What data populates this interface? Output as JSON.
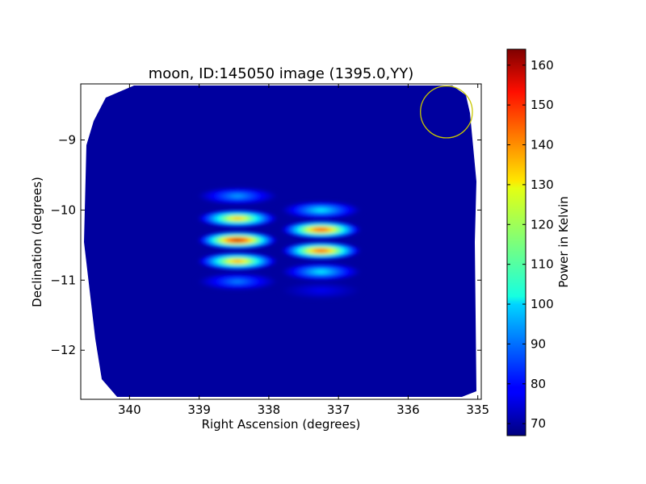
{
  "chart_data": {
    "type": "heatmap",
    "title": "moon, ID:145050 image (1395.0,YY)",
    "xlabel": "Right Ascension (degrees)",
    "ylabel": "Declination (degrees)",
    "xlim": [
      340.7,
      334.95
    ],
    "ylim": [
      -12.7,
      -8.2
    ],
    "x_ticks": [
      340,
      339,
      338,
      337,
      336,
      335
    ],
    "x_tick_labels": [
      "340",
      "339",
      "338",
      "337",
      "336",
      "335"
    ],
    "y_ticks": [
      -9,
      -10,
      -11,
      -12
    ],
    "y_tick_labels": [
      "−9",
      "−10",
      "−11",
      "−12"
    ],
    "colorbar": {
      "label": "Power in Kelvin",
      "min": 67,
      "max": 164,
      "ticks": [
        70,
        80,
        90,
        100,
        110,
        120,
        130,
        140,
        150,
        160
      ],
      "tick_labels": [
        "70",
        "80",
        "90",
        "100",
        "110",
        "120",
        "130",
        "140",
        "150",
        "160"
      ],
      "colormap": "jet"
    },
    "background_level": 70,
    "sources": [
      {
        "ra": 338.45,
        "dec": -10.43,
        "rows": [
          {
            "dec": -9.8,
            "peak": 95
          },
          {
            "dec": -10.12,
            "peak": 137
          },
          {
            "dec": -10.43,
            "peak": 162
          },
          {
            "dec": -10.73,
            "peak": 140
          },
          {
            "dec": -11.02,
            "peak": 92
          }
        ]
      },
      {
        "ra": 337.25,
        "dec": -10.45,
        "rows": [
          {
            "dec": -10.0,
            "peak": 103
          },
          {
            "dec": -10.28,
            "peak": 152
          },
          {
            "dec": -10.58,
            "peak": 150
          },
          {
            "dec": -10.88,
            "peak": 103
          },
          {
            "dec": -11.15,
            "peak": 78
          }
        ]
      }
    ],
    "beam_marker": {
      "ra": 335.45,
      "dec": -8.6,
      "radius_deg": 0.37,
      "color": "#c8c800"
    }
  }
}
